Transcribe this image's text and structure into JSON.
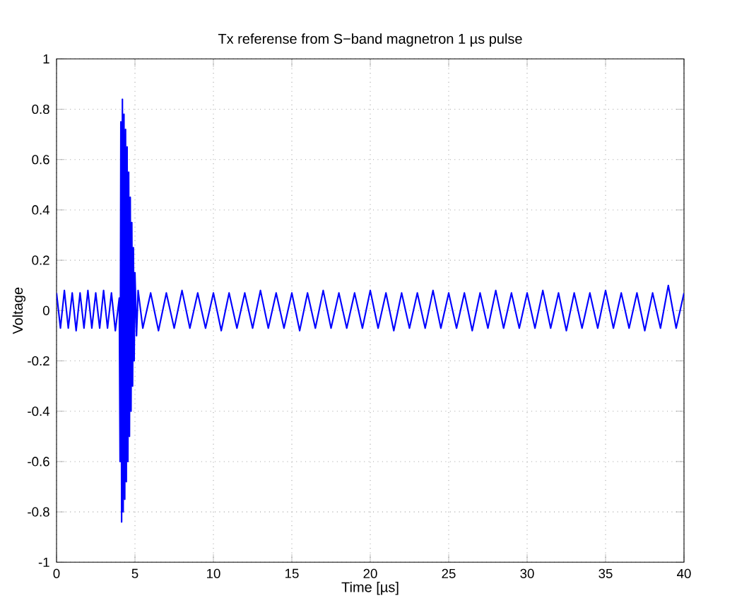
{
  "chart_data": {
    "type": "line",
    "title": "Tx referense from S−band magnetron 1 µs pulse",
    "xlabel": "Time [µs]",
    "ylabel": "Voltage",
    "xlim": [
      0,
      40
    ],
    "ylim": [
      -1,
      1
    ],
    "xticks": [
      0,
      5,
      10,
      15,
      20,
      25,
      30,
      35,
      40
    ],
    "yticks": [
      -1,
      -0.8,
      -0.6,
      -0.4,
      -0.2,
      0,
      0.2,
      0.4,
      0.6,
      0.8,
      1
    ],
    "grid": true,
    "marker": "none",
    "line_style": "solid",
    "series": [
      {
        "color": "#0000ff",
        "x": [
          0,
          0.25,
          0.5,
          0.75,
          1,
          1.25,
          1.5,
          1.75,
          2,
          2.25,
          2.5,
          2.75,
          3,
          3.25,
          3.5,
          3.75,
          4,
          4.05,
          4.1,
          4.15,
          4.2,
          4.25,
          4.3,
          4.35,
          4.4,
          4.45,
          4.5,
          4.55,
          4.6,
          4.65,
          4.7,
          4.75,
          4.8,
          4.85,
          4.9,
          4.95,
          5,
          5.1,
          5.2,
          5.5,
          6,
          6.5,
          7,
          7.5,
          8,
          8.5,
          9,
          9.5,
          10,
          10.5,
          11,
          11.5,
          12,
          12.5,
          13,
          13.5,
          14,
          14.5,
          15,
          15.5,
          16,
          16.5,
          17,
          17.5,
          18,
          18.5,
          19,
          19.5,
          20,
          20.5,
          21,
          21.5,
          22,
          22.5,
          23,
          23.5,
          24,
          24.5,
          25,
          25.5,
          26,
          26.5,
          27,
          27.5,
          28,
          28.5,
          29,
          29.5,
          30,
          30.5,
          31,
          31.5,
          32,
          32.5,
          33,
          33.5,
          34,
          34.5,
          35,
          35.5,
          36,
          36.5,
          37,
          37.5,
          38,
          38.5,
          39,
          39.5,
          40
        ],
        "values": [
          0.07,
          -0.07,
          0.08,
          -0.07,
          0.07,
          -0.08,
          0.07,
          -0.07,
          0.08,
          -0.07,
          0.07,
          -0.07,
          0.08,
          -0.07,
          0.07,
          -0.08,
          0.05,
          -0.6,
          0.75,
          -0.84,
          0.84,
          -0.8,
          0.78,
          -0.75,
          0.72,
          -0.68,
          0.65,
          -0.6,
          0.55,
          -0.5,
          0.45,
          -0.4,
          0.35,
          -0.3,
          0.25,
          -0.2,
          0.15,
          -0.1,
          0.08,
          -0.07,
          0.07,
          -0.08,
          0.07,
          -0.07,
          0.08,
          -0.07,
          0.07,
          -0.07,
          0.07,
          -0.08,
          0.07,
          -0.07,
          0.07,
          -0.07,
          0.08,
          -0.07,
          0.07,
          -0.07,
          0.07,
          -0.08,
          0.07,
          -0.07,
          0.08,
          -0.07,
          0.07,
          -0.07,
          0.07,
          -0.07,
          0.08,
          -0.07,
          0.07,
          -0.08,
          0.07,
          -0.07,
          0.07,
          -0.07,
          0.08,
          -0.07,
          0.07,
          -0.07,
          0.07,
          -0.08,
          0.07,
          -0.07,
          0.08,
          -0.07,
          0.07,
          -0.07,
          0.07,
          -0.07,
          0.08,
          -0.07,
          0.07,
          -0.08,
          0.07,
          -0.07,
          0.07,
          -0.07,
          0.08,
          -0.07,
          0.07,
          -0.07,
          0.07,
          -0.08,
          0.07,
          -0.07,
          0.1,
          -0.07,
          0.07
        ]
      }
    ]
  }
}
